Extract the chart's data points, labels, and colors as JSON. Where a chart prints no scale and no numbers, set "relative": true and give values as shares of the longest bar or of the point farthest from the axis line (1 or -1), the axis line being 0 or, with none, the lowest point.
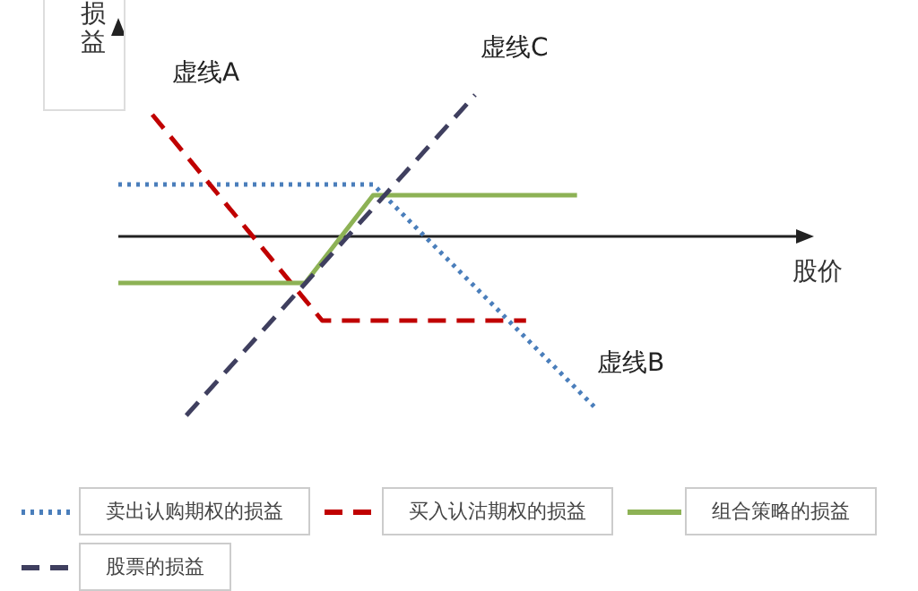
{
  "chart_data": {
    "type": "line",
    "relative": true,
    "xlabel": "股价",
    "ylabel": "损益",
    "categories": [
      null,
      null,
      null,
      null,
      null,
      null,
      null,
      null,
      null,
      null,
      null,
      null,
      null,
      null,
      null,
      null,
      null,
      null,
      null,
      null,
      null,
      null,
      null,
      null,
      null,
      null,
      null,
      null,
      null,
      null,
      null,
      null,
      null,
      null,
      null,
      null,
      null,
      null,
      null,
      null,
      null
    ],
    "series": [
      {
        "name": "卖出认购期权的损益",
        "color": "#4a7ebb",
        "line_style": "dotted",
        "values": [
          0.29,
          null,
          null,
          null,
          null,
          null,
          null,
          null,
          null,
          null,
          null,
          null,
          null,
          null,
          null,
          0.29,
          null,
          null,
          null,
          null,
          null,
          null,
          null,
          null,
          null,
          null,
          null,
          null,
          -0.95,
          null,
          null,
          null,
          null,
          null,
          null,
          null,
          null,
          null,
          null,
          null,
          null
        ]
      },
      {
        "name": "买入认沽期权的损益",
        "color": "#c00000",
        "line_style": "dashed",
        "values": [
          null,
          null,
          0.68,
          null,
          null,
          null,
          null,
          null,
          null,
          null,
          null,
          null,
          -0.47,
          null,
          null,
          null,
          null,
          null,
          null,
          null,
          null,
          null,
          null,
          null,
          -0.47,
          null,
          null,
          null,
          null,
          null,
          null,
          null,
          null,
          null,
          null,
          null,
          null,
          null,
          null,
          null,
          null
        ]
      },
      {
        "name": "组合策略的损益",
        "color": "#8db255",
        "line_style": "solid",
        "values": [
          -0.26,
          null,
          null,
          null,
          null,
          null,
          null,
          null,
          null,
          null,
          null,
          -0.26,
          null,
          null,
          null,
          0.23,
          null,
          null,
          null,
          null,
          null,
          null,
          null,
          null,
          null,
          null,
          null,
          0.23,
          null,
          null,
          null,
          null,
          null,
          null,
          null,
          null,
          null,
          null,
          null,
          null,
          null
        ]
      },
      {
        "name": "股票的损益",
        "color": "#3f3f5f",
        "line_style": "dashed",
        "values": [
          null,
          null,
          null,
          null,
          -1,
          null,
          null,
          null,
          null,
          null,
          null,
          null,
          null,
          null,
          null,
          null,
          null,
          null,
          null,
          null,
          null,
          0.79,
          null,
          null,
          null,
          null,
          null,
          null,
          null,
          null,
          null,
          null,
          null,
          null,
          null,
          null,
          null,
          null,
          null,
          null,
          null
        ]
      }
    ],
    "annotations": [
      "虚线A",
      "虚线C",
      "虚线B"
    ],
    "legend": "bottom",
    "marker": "none"
  }
}
